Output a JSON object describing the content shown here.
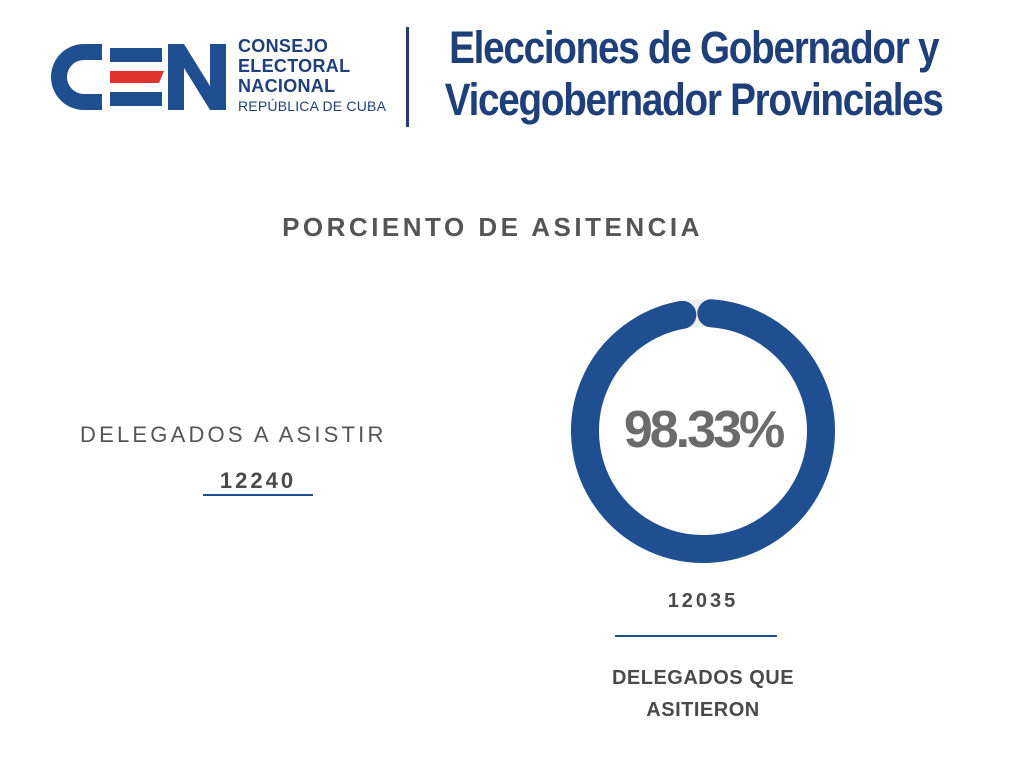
{
  "header": {
    "logo_text": "CEN",
    "org_lines": [
      "CONSEJO",
      "ELECTORAL",
      "NACIONAL"
    ],
    "org_subline": "REPÚBLICA DE CUBA",
    "title_lines": [
      "Elecciones de Gobernador y",
      "Vicegobernador Provinciales"
    ]
  },
  "colors": {
    "brand_blue": "#1f4f91",
    "title_blue": "#1f3f7a",
    "accent_red": "#e0332f",
    "track_gray": "#eeeeee",
    "text_gray": "#555555"
  },
  "chart_data": {
    "type": "pie",
    "title": "PORCIENTO DE ASITENCIA",
    "left_label": "DELEGADOS A ASISTIR",
    "total": 12240,
    "total_display": "12240",
    "attended": 12035,
    "attended_display": "12035",
    "attended_label_lines": [
      "DELEGADOS QUE",
      "ASITIERON"
    ],
    "percent": 98.33,
    "percent_display": "98.33%"
  }
}
